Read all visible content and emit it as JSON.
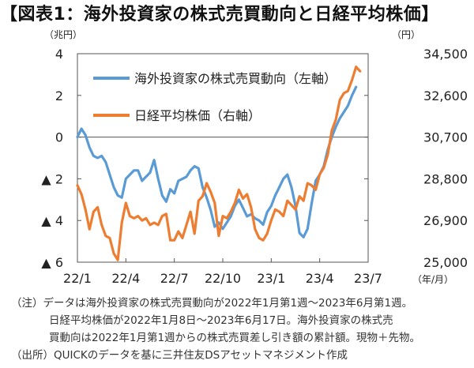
{
  "title": "【図表1：海外投資家の株式売買動向と日経平均株価】",
  "notes": [
    "（注）データは海外投資家の株式売買動向が2022年1月第1週～2023年6月第1週。",
    "日経平均株価が2022年1月8日～2023年6月17日。海外投資家の株式売",
    "買動向は2022年1月第1週からの株式売買差し引き額の累計額。現物＋先物。",
    "（出所）QUICKのデータを基に三井住友DSアセットマネジメント作成"
  ],
  "chart_data": {
    "type": "line",
    "x_ticks": [
      "22/1",
      "22/4",
      "22/7",
      "22/10",
      "23/1",
      "23/4",
      "23/7"
    ],
    "x_unit": "（年/月）",
    "left_axis": {
      "unit": "（兆円）",
      "range": [
        -6,
        4
      ],
      "tick_values": [
        4,
        2,
        0,
        -2,
        -4,
        -6
      ],
      "tick_labels": [
        "4",
        "2",
        "0",
        "▲ 2",
        "▲ 4",
        "▲ 6"
      ]
    },
    "right_axis": {
      "unit": "（円）",
      "range": [
        25000,
        34500
      ],
      "tick_values": [
        34500,
        32600,
        30700,
        28800,
        26900,
        25000
      ],
      "tick_labels": [
        "34,500",
        "32,600",
        "30,700",
        "28,800",
        "26,900",
        "25,000"
      ]
    },
    "x_range_months": [
      0,
      18
    ],
    "series": [
      {
        "name": "海外投資家の株式売買動向（左軸）",
        "axis": "left",
        "color": "#5b9bd5",
        "x": [
          0,
          0.25,
          0.5,
          0.75,
          1.0,
          1.25,
          1.5,
          1.75,
          2.0,
          2.25,
          2.5,
          2.75,
          3.0,
          3.25,
          3.5,
          3.75,
          4.0,
          4.25,
          4.5,
          4.75,
          5.0,
          5.25,
          5.5,
          5.75,
          6.0,
          6.25,
          6.5,
          6.75,
          7.0,
          7.25,
          7.5,
          7.75,
          8.0,
          8.25,
          8.5,
          8.75,
          9.0,
          9.25,
          9.5,
          9.75,
          10.0,
          10.25,
          10.5,
          10.75,
          11.0,
          11.25,
          11.5,
          11.75,
          12.0,
          12.25,
          12.5,
          12.75,
          13.0,
          13.25,
          13.5,
          13.75,
          14.0,
          14.25,
          14.5,
          14.75,
          15.0,
          15.25,
          15.5,
          15.75,
          16.0,
          16.25,
          16.5,
          16.75,
          17.0,
          17.25
        ],
        "values": [
          0.0,
          0.4,
          0.1,
          -0.5,
          -0.9,
          -1.0,
          -0.9,
          -1.2,
          -1.8,
          -2.4,
          -2.8,
          -2.9,
          -2.0,
          -1.8,
          -1.6,
          -1.6,
          -2.1,
          -1.9,
          -1.7,
          -1.1,
          -2.0,
          -2.8,
          -3.1,
          -2.5,
          -2.7,
          -2.1,
          -2.0,
          -1.9,
          -1.6,
          -1.4,
          -1.5,
          -2.4,
          -2.9,
          -3.5,
          -4.3,
          -4.1,
          -4.4,
          -4.1,
          -3.8,
          -3.3,
          -3.0,
          -3.4,
          -3.8,
          -3.7,
          -3.9,
          -4.0,
          -4.2,
          -3.6,
          -3.3,
          -2.8,
          -2.4,
          -2.0,
          -1.8,
          -2.4,
          -3.3,
          -4.6,
          -4.8,
          -4.4,
          -3.2,
          -2.1,
          -1.8,
          -1.4,
          -0.6,
          0.0,
          0.5,
          0.9,
          1.2,
          1.5,
          2.0,
          2.4
        ]
      },
      {
        "name": "日経平均株価（右軸）",
        "axis": "right",
        "color": "#ed7d31",
        "x": [
          0,
          0.25,
          0.5,
          0.75,
          1.0,
          1.25,
          1.5,
          1.75,
          2.0,
          2.25,
          2.5,
          2.75,
          3.0,
          3.25,
          3.5,
          3.75,
          4.0,
          4.25,
          4.5,
          4.75,
          5.0,
          5.25,
          5.5,
          5.75,
          6.0,
          6.25,
          6.5,
          6.75,
          7.0,
          7.25,
          7.5,
          7.75,
          8.0,
          8.25,
          8.5,
          8.75,
          9.0,
          9.25,
          9.5,
          9.75,
          10.0,
          10.25,
          10.5,
          10.75,
          11.0,
          11.25,
          11.5,
          11.75,
          12.0,
          12.25,
          12.5,
          12.75,
          13.0,
          13.25,
          13.5,
          13.75,
          14.0,
          14.25,
          14.5,
          14.75,
          15.0,
          15.25,
          15.5,
          15.75,
          16.0,
          16.25,
          16.5,
          16.75,
          17.0,
          17.25,
          17.5
        ],
        "values": [
          28500,
          28100,
          27400,
          26500,
          27300,
          27500,
          26700,
          26200,
          26100,
          25400,
          25100,
          26800,
          27700,
          27100,
          27000,
          27100,
          26900,
          27000,
          26700,
          26800,
          26700,
          27100,
          27200,
          26000,
          26000,
          26400,
          26100,
          26700,
          27300,
          26300,
          27800,
          28000,
          28600,
          28200,
          27700,
          26200,
          27100,
          27000,
          27300,
          27700,
          28300,
          27900,
          28100,
          27500,
          26500,
          26100,
          26000,
          26300,
          26900,
          27400,
          27300,
          27100,
          27800,
          27600,
          27400,
          28000,
          27800,
          28600,
          28500,
          28300,
          29000,
          29300,
          29900,
          31000,
          31500,
          32400,
          32700,
          32800,
          33300,
          33900,
          33700
        ]
      }
    ]
  }
}
